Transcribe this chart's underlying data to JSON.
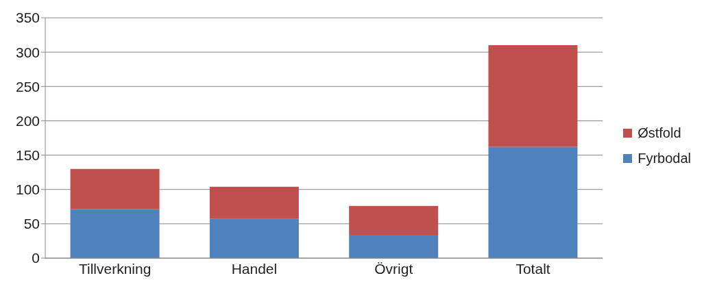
{
  "chart_data": {
    "type": "bar",
    "stacked": true,
    "categories": [
      "Tillverkning",
      "Handel",
      "Övrigt",
      "Totalt"
    ],
    "series": [
      {
        "name": "Fyrbodal",
        "color": "#4f81bd",
        "values": [
          71,
          57,
          34,
          162
        ]
      },
      {
        "name": "Østfold",
        "color": "#c0504d",
        "values": [
          59,
          47,
          42,
          148
        ]
      }
    ],
    "ylim": [
      0,
      350
    ],
    "yticks": [
      0,
      50,
      100,
      150,
      200,
      250,
      300,
      350
    ],
    "grid": "y",
    "legend": "right"
  }
}
